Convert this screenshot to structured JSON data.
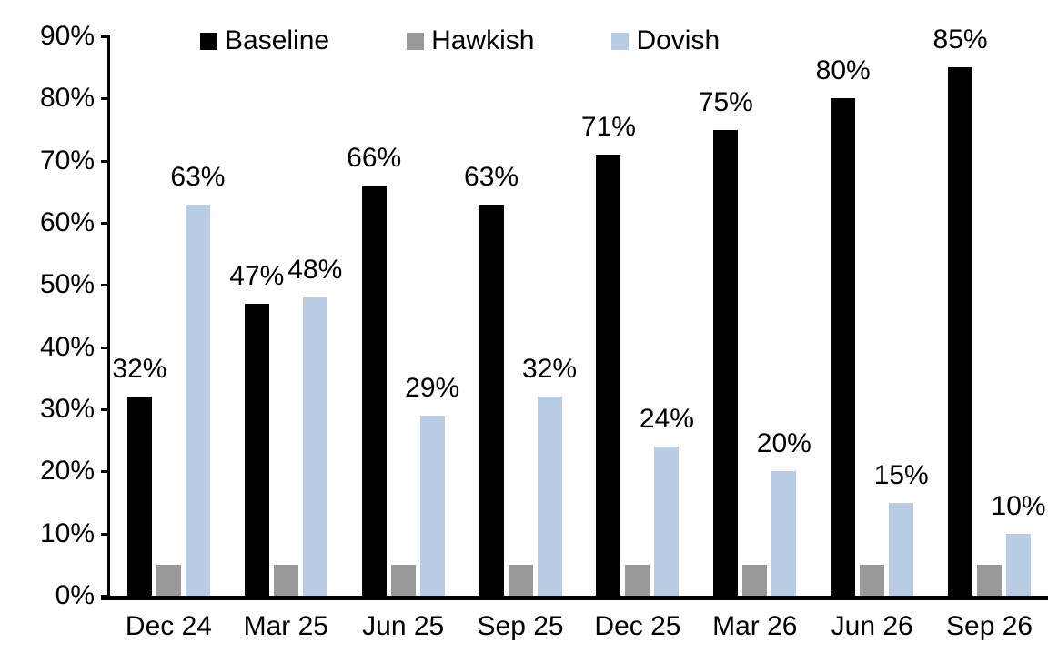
{
  "chart_data": {
    "type": "bar",
    "title": "",
    "categories": [
      "Dec 24",
      "Mar 25",
      "Jun 25",
      "Sep 25",
      "Dec 25",
      "Mar 26",
      "Jun 26",
      "Sep 26"
    ],
    "series": [
      {
        "name": "Baseline",
        "color": "#000000",
        "values": [
          32,
          47,
          66,
          63,
          71,
          75,
          80,
          85
        ],
        "data_labels": [
          "32%",
          "47%",
          "66%",
          "63%",
          "71%",
          "75%",
          "80%",
          "85%"
        ]
      },
      {
        "name": "Hawkish",
        "color": "#999999",
        "values": [
          5,
          5,
          5,
          5,
          5,
          5,
          5,
          5
        ],
        "data_labels": null
      },
      {
        "name": "Dovish",
        "color": "#b8cce4",
        "values": [
          63,
          48,
          29,
          32,
          24,
          20,
          15,
          10
        ],
        "data_labels": [
          "63%",
          "48%",
          "29%",
          "32%",
          "24%",
          "20%",
          "15%",
          "10%"
        ]
      }
    ],
    "y_axis": {
      "min": 0,
      "max": 90,
      "step": 10,
      "tick_labels": [
        "0%",
        "10%",
        "20%",
        "30%",
        "40%",
        "50%",
        "60%",
        "70%",
        "80%",
        "90%"
      ]
    },
    "legend_position": "top",
    "grid": false,
    "axis_color": "#000000",
    "background_color": "#ffffff"
  }
}
